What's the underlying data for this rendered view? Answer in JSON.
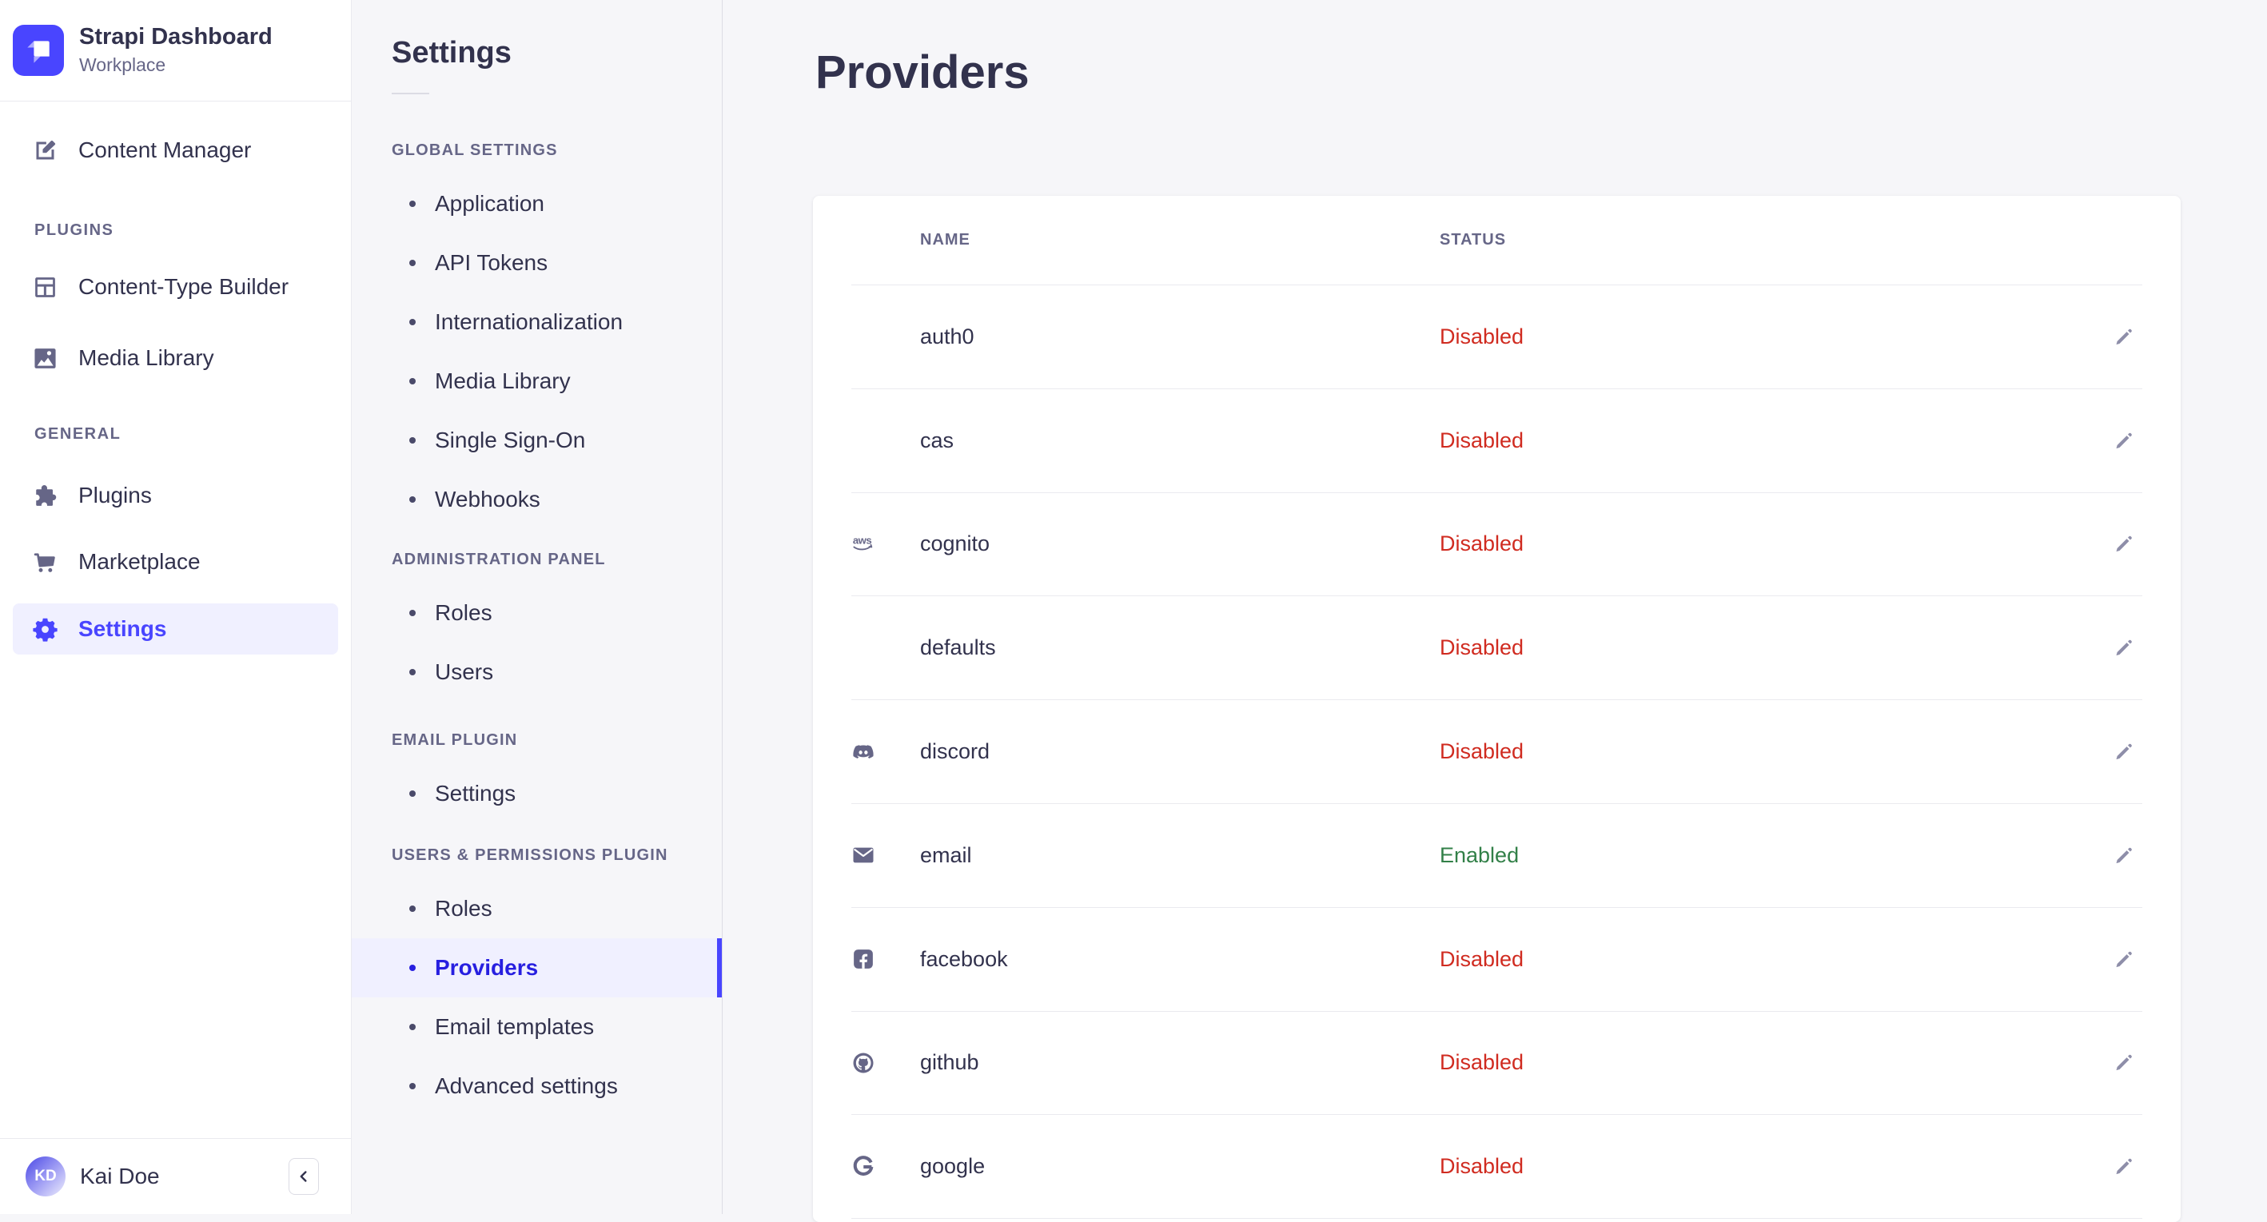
{
  "app": {
    "title": "Strapi Dashboard",
    "workspace": "Workplace"
  },
  "colors": {
    "primary": "#4945ff",
    "primary_light": "#f0f0ff",
    "active_text": "#271fe0",
    "status_disabled": "#d02b20",
    "status_enabled": "#328048",
    "background": "#f6f6f9"
  },
  "sidebar": {
    "groups": [
      {
        "label": "",
        "items": [
          {
            "label": "Content Manager",
            "icon": "content-manager-icon",
            "active": false
          }
        ]
      },
      {
        "label": "PLUGINS",
        "items": [
          {
            "label": "Content-Type Builder",
            "icon": "content-type-builder-icon",
            "active": false
          },
          {
            "label": "Media Library",
            "icon": "media-library-icon",
            "active": false
          }
        ]
      },
      {
        "label": "GENERAL",
        "items": [
          {
            "label": "Plugins",
            "icon": "plugins-icon",
            "active": false
          },
          {
            "label": "Marketplace",
            "icon": "marketplace-icon",
            "active": false
          },
          {
            "label": "Settings",
            "icon": "settings-gear-icon",
            "active": true
          }
        ]
      }
    ],
    "footer": {
      "user_name": "Kai Doe",
      "user_initials": "KD"
    }
  },
  "subnav": {
    "title": "Settings",
    "sections": [
      {
        "label": "GLOBAL SETTINGS",
        "items": [
          {
            "label": "Application",
            "active": false
          },
          {
            "label": "API Tokens",
            "active": false
          },
          {
            "label": "Internationalization",
            "active": false
          },
          {
            "label": "Media Library",
            "active": false
          },
          {
            "label": "Single Sign-On",
            "active": false
          },
          {
            "label": "Webhooks",
            "active": false
          }
        ]
      },
      {
        "label": "ADMINISTRATION PANEL",
        "items": [
          {
            "label": "Roles",
            "active": false
          },
          {
            "label": "Users",
            "active": false
          }
        ]
      },
      {
        "label": "EMAIL PLUGIN",
        "items": [
          {
            "label": "Settings",
            "active": false
          }
        ]
      },
      {
        "label": "USERS & PERMISSIONS PLUGIN",
        "items": [
          {
            "label": "Roles",
            "active": false
          },
          {
            "label": "Providers",
            "active": true
          },
          {
            "label": "Email templates",
            "active": false
          },
          {
            "label": "Advanced settings",
            "active": false
          }
        ]
      }
    ]
  },
  "main": {
    "title": "Providers",
    "table": {
      "columns": [
        "NAME",
        "STATUS"
      ],
      "rows": [
        {
          "name": "auth0",
          "icon": "",
          "status": "Disabled"
        },
        {
          "name": "cas",
          "icon": "",
          "status": "Disabled"
        },
        {
          "name": "cognito",
          "icon": "aws-icon",
          "status": "Disabled"
        },
        {
          "name": "defaults",
          "icon": "",
          "status": "Disabled"
        },
        {
          "name": "discord",
          "icon": "discord-icon",
          "status": "Disabled"
        },
        {
          "name": "email",
          "icon": "envelope-icon",
          "status": "Enabled"
        },
        {
          "name": "facebook",
          "icon": "facebook-icon",
          "status": "Disabled"
        },
        {
          "name": "github",
          "icon": "github-icon",
          "status": "Disabled"
        },
        {
          "name": "google",
          "icon": "google-icon",
          "status": "Disabled"
        }
      ]
    },
    "help_label": "?"
  }
}
